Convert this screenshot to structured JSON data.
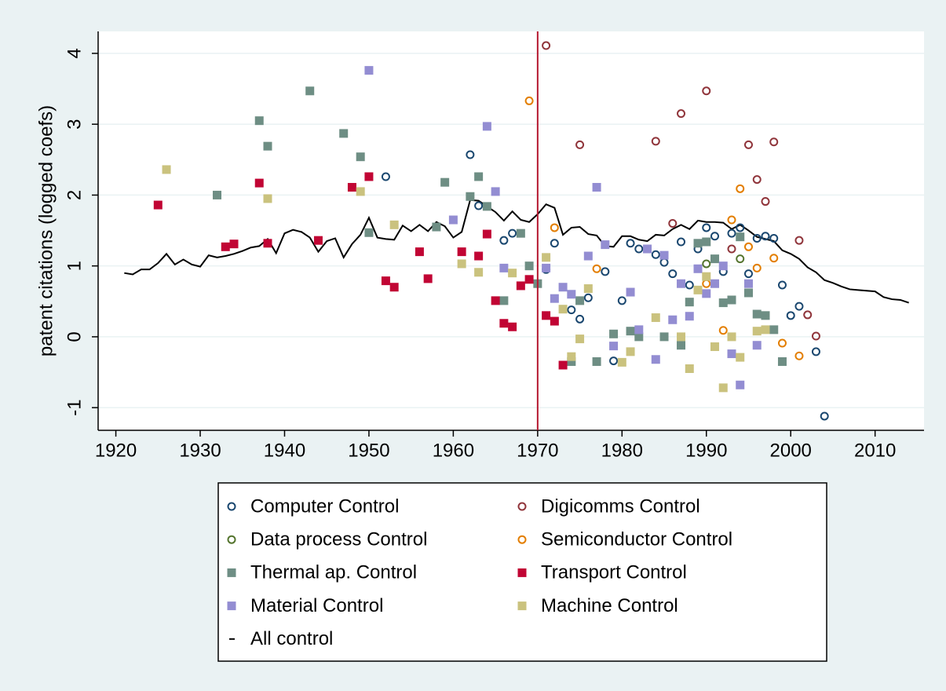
{
  "chart_data": {
    "type": "scatter",
    "ylabel": "patent citations (logged coefs)",
    "xlim": [
      1917.9,
      2015.8
    ],
    "ylim": [
      -1.32,
      4.31
    ],
    "xticks": [
      1920,
      1930,
      1940,
      1950,
      1960,
      1970,
      1980,
      1990,
      2000,
      2010
    ],
    "yticks": [
      -1,
      0,
      1,
      2,
      3,
      4
    ],
    "grid": true,
    "reference_line": 1970,
    "reference_color": "#b5172f",
    "series": [
      {
        "name": "Computer Control",
        "color": "#1a476f",
        "marker": "hollow",
        "x": [
          1952,
          1962,
          1963,
          1966,
          1967,
          1972,
          1971,
          1974,
          1975,
          1976,
          1978,
          1979,
          1980,
          1981,
          1982,
          1984,
          1985,
          1986,
          1987,
          1988,
          1989,
          1990,
          1991,
          1992,
          1993,
          1994,
          1995,
          1996,
          1997,
          1998,
          1999,
          2000,
          2001,
          2003,
          2004
        ],
        "values": [
          2.26,
          2.57,
          1.85,
          1.36,
          1.46,
          1.32,
          0.95,
          0.38,
          0.25,
          0.55,
          0.92,
          -0.34,
          0.51,
          1.32,
          1.24,
          1.16,
          1.05,
          0.89,
          1.34,
          0.73,
          1.24,
          1.54,
          1.42,
          0.92,
          1.46,
          1.54,
          0.89,
          1.39,
          1.42,
          1.39,
          0.73,
          0.3,
          0.43,
          -0.21,
          -1.12
        ]
      },
      {
        "name": "Digicomms Control",
        "color": "#90353b",
        "marker": "hollow",
        "x": [
          1971,
          1975,
          1984,
          1986,
          1987,
          1990,
          1993,
          1995,
          1996,
          1997,
          1998,
          2001,
          2002,
          2003
        ],
        "values": [
          4.11,
          2.71,
          2.76,
          1.6,
          3.15,
          3.47,
          1.24,
          2.71,
          2.22,
          1.91,
          2.75,
          1.36,
          0.31,
          0.01
        ]
      },
      {
        "name": "Data process Control",
        "color": "#55752f",
        "marker": "hollow",
        "x": [
          1990,
          1994
        ],
        "values": [
          1.03,
          1.1
        ]
      },
      {
        "name": "Semiconductor Control",
        "color": "#e37e00",
        "marker": "hollow",
        "x": [
          1969,
          1972,
          1977,
          1990,
          1993,
          1994,
          1995,
          1996,
          1992,
          1998,
          1999,
          2001
        ],
        "values": [
          3.33,
          1.54,
          0.96,
          0.75,
          1.65,
          2.09,
          1.27,
          0.97,
          0.09,
          1.11,
          -0.09,
          -0.27
        ]
      },
      {
        "name": "Thermal ap. Control",
        "color": "#6e8e84",
        "marker": "filled",
        "x": [
          1932,
          1937,
          1938,
          1943,
          1947,
          1949,
          1950,
          1959,
          1958,
          1962,
          1963,
          1964,
          1966,
          1968,
          1969,
          1970,
          1974,
          1975,
          1977,
          1979,
          1981,
          1982,
          1985,
          1987,
          1988,
          1989,
          1990,
          1991,
          1992,
          1993,
          1994,
          1995,
          1996,
          1997,
          1998,
          1999
        ],
        "values": [
          2.0,
          3.05,
          2.69,
          3.47,
          2.87,
          2.54,
          1.47,
          2.18,
          1.55,
          1.98,
          2.26,
          1.84,
          0.51,
          1.46,
          1.0,
          0.75,
          -0.35,
          0.51,
          -0.35,
          0.04,
          0.08,
          0.0,
          0.0,
          -0.12,
          0.49,
          1.32,
          1.34,
          1.1,
          0.48,
          0.52,
          1.41,
          0.62,
          0.32,
          0.3,
          0.1,
          -0.35
        ]
      },
      {
        "name": "Transport Control",
        "color": "#c10534",
        "marker": "filled",
        "x": [
          1925,
          1933,
          1934,
          1937,
          1938,
          1944,
          1948,
          1950,
          1952,
          1953,
          1956,
          1957,
          1961,
          1963,
          1964,
          1965,
          1966,
          1967,
          1968,
          1969,
          1971,
          1972,
          1973
        ],
        "values": [
          1.86,
          1.27,
          1.31,
          2.17,
          1.32,
          1.36,
          2.11,
          2.26,
          0.79,
          0.7,
          1.2,
          0.82,
          1.2,
          1.14,
          1.45,
          0.51,
          0.19,
          0.14,
          0.72,
          0.81,
          0.3,
          0.22,
          -0.4
        ]
      },
      {
        "name": "Material Control",
        "color": "#938dd2",
        "marker": "filled",
        "x": [
          1950,
          1960,
          1964,
          1965,
          1966,
          1971,
          1972,
          1973,
          1974,
          1976,
          1977,
          1978,
          1979,
          1981,
          1982,
          1983,
          1984,
          1985,
          1986,
          1987,
          1988,
          1989,
          1990,
          1991,
          1992,
          1993,
          1994,
          1995,
          1996
        ],
        "values": [
          3.76,
          1.65,
          2.97,
          2.05,
          0.97,
          0.97,
          0.54,
          0.7,
          0.6,
          1.14,
          2.11,
          1.3,
          -0.13,
          0.63,
          0.1,
          1.24,
          -0.32,
          1.15,
          0.24,
          0.75,
          0.29,
          0.96,
          0.61,
          0.75,
          1.0,
          -0.24,
          -0.68,
          0.75,
          -0.12
        ]
      },
      {
        "name": "Machine Control",
        "color": "#cac27e",
        "marker": "filled",
        "x": [
          1926,
          1938,
          1949,
          1953,
          1961,
          1963,
          1967,
          1971,
          1973,
          1974,
          1975,
          1976,
          1980,
          1981,
          1984,
          1987,
          1988,
          1989,
          1990,
          1991,
          1992,
          1993,
          1994,
          1996,
          1997
        ],
        "values": [
          2.36,
          1.95,
          2.05,
          1.58,
          1.03,
          0.91,
          0.9,
          1.12,
          0.39,
          -0.28,
          -0.03,
          0.68,
          -0.36,
          -0.21,
          0.27,
          0.0,
          -0.45,
          0.66,
          0.85,
          -0.14,
          -0.72,
          0.0,
          -0.29,
          0.08,
          0.1
        ]
      },
      {
        "name": "All control",
        "color": "#000000",
        "marker": "line",
        "x": [
          1921,
          1922,
          1923,
          1924,
          1925,
          1926,
          1927,
          1928,
          1929,
          1930,
          1931,
          1932,
          1933,
          1934,
          1935,
          1936,
          1937,
          1938,
          1939,
          1940,
          1941,
          1942,
          1943,
          1944,
          1945,
          1946,
          1947,
          1948,
          1949,
          1950,
          1951,
          1952,
          1953,
          1954,
          1955,
          1956,
          1957,
          1958,
          1959,
          1960,
          1961,
          1962,
          1963,
          1964,
          1965,
          1966,
          1967,
          1968,
          1969,
          1970,
          1971,
          1972,
          1973,
          1974,
          1975,
          1976,
          1977,
          1978,
          1979,
          1980,
          1981,
          1982,
          1983,
          1984,
          1985,
          1986,
          1987,
          1988,
          1989,
          1990,
          1991,
          1992,
          1993,
          1994,
          1995,
          1996,
          1997,
          1998,
          1999,
          2000,
          2001,
          2002,
          2003,
          2004,
          2005,
          2006,
          2007,
          2008,
          2009,
          2010,
          2011,
          2012,
          2013,
          2014
        ],
        "values": [
          0.9,
          0.88,
          0.95,
          0.95,
          1.04,
          1.17,
          1.02,
          1.09,
          1.02,
          0.99,
          1.15,
          1.12,
          1.14,
          1.17,
          1.21,
          1.26,
          1.28,
          1.38,
          1.18,
          1.46,
          1.51,
          1.48,
          1.4,
          1.2,
          1.35,
          1.39,
          1.12,
          1.31,
          1.44,
          1.68,
          1.4,
          1.38,
          1.37,
          1.57,
          1.49,
          1.58,
          1.49,
          1.62,
          1.56,
          1.4,
          1.48,
          1.93,
          1.92,
          1.84,
          1.76,
          1.64,
          1.77,
          1.65,
          1.62,
          1.73,
          1.87,
          1.82,
          1.44,
          1.54,
          1.55,
          1.45,
          1.43,
          1.28,
          1.27,
          1.42,
          1.42,
          1.37,
          1.35,
          1.44,
          1.43,
          1.52,
          1.58,
          1.52,
          1.64,
          1.62,
          1.62,
          1.61,
          1.52,
          1.58,
          1.5,
          1.41,
          1.38,
          1.35,
          1.22,
          1.17,
          1.1,
          0.98,
          0.91,
          0.8,
          0.76,
          0.71,
          0.67,
          0.66,
          0.65,
          0.64,
          0.56,
          0.53,
          0.52,
          0.48
        ]
      }
    ]
  }
}
